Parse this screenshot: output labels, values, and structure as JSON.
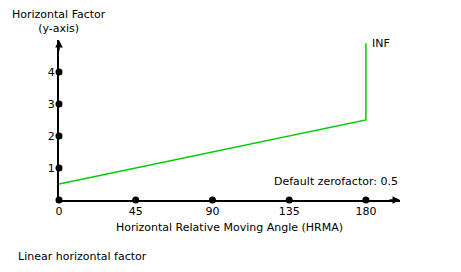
{
  "chart_data": {
    "type": "line",
    "x": [
      0,
      180,
      180
    ],
    "values": [
      0.5,
      2.5,
      4.9
    ],
    "color": "#00cc00",
    "xlim": [
      0,
      200
    ],
    "ylim": [
      0,
      5
    ],
    "xticks": [
      0,
      45,
      90,
      135,
      180
    ],
    "yticks": [
      1,
      2,
      3,
      4
    ],
    "x_label": "Horizontal Relative Moving Angle (HRMA)",
    "y_label": "Horizontal Factor\n(y-axis)",
    "annotations": [
      "INF",
      "Default zerofactor: 0.5"
    ],
    "caption": "Linear horizontal factor",
    "grid": false
  }
}
